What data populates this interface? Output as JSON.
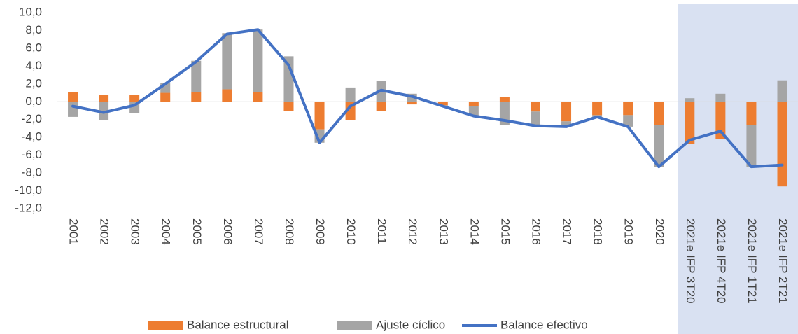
{
  "chart_data": {
    "type": "bar_line",
    "categories": [
      "2001",
      "2002",
      "2003",
      "2004",
      "2005",
      "2006",
      "2007",
      "2008",
      "2009",
      "2010",
      "2011",
      "2012",
      "2013",
      "2014",
      "2015",
      "2016",
      "2017",
      "2018",
      "2019",
      "2020",
      "2021e IFP 3T20",
      "2021e IFP 4T20",
      "2021e IFP 1T21",
      "2021e IFP 2T21"
    ],
    "series": [
      {
        "name": "Balance estructural",
        "type": "bar",
        "color": "#ed7d31",
        "values": [
          1.1,
          0.8,
          0.8,
          1.0,
          1.1,
          1.4,
          1.1,
          -1.0,
          -3.1,
          -2.1,
          -1.0,
          -0.3,
          -0.4,
          -0.5,
          0.5,
          -1.1,
          -2.2,
          -1.5,
          -1.5,
          -2.6,
          -4.7,
          -4.2,
          -2.6,
          -9.5
        ]
      },
      {
        "name": "Ajuste cíclico",
        "type": "bar",
        "color": "#a5a5a5",
        "values": [
          -1.7,
          -2.1,
          -1.3,
          1.1,
          3.5,
          6.3,
          7.0,
          5.1,
          -1.5,
          1.6,
          2.3,
          0.9,
          -0.1,
          -1.1,
          -2.6,
          -1.6,
          -0.6,
          -0.2,
          -1.3,
          -4.7,
          0.4,
          0.9,
          -4.7,
          2.4
        ]
      },
      {
        "name": "Balance efectivo",
        "type": "line",
        "color": "#4472c4",
        "values": [
          -0.5,
          -1.2,
          -0.4,
          2.0,
          4.5,
          7.6,
          8.1,
          4.1,
          -4.6,
          -0.5,
          1.3,
          0.6,
          -0.5,
          -1.6,
          -2.1,
          -2.7,
          -2.8,
          -1.7,
          -2.8,
          -7.3,
          -4.3,
          -3.3,
          -7.3,
          -7.1
        ]
      }
    ],
    "ylim": [
      -12,
      10
    ],
    "yticks": [
      {
        "value": 10,
        "label": "10,0"
      },
      {
        "value": 8,
        "label": "8,0"
      },
      {
        "value": 6,
        "label": "6,0"
      },
      {
        "value": 4,
        "label": "4,0"
      },
      {
        "value": 2,
        "label": "2,0"
      },
      {
        "value": 0,
        "label": "0,0"
      },
      {
        "value": -2,
        "label": "-2,0"
      },
      {
        "value": -4,
        "label": "-4,0"
      },
      {
        "value": -6,
        "label": "-6,0"
      },
      {
        "value": -8,
        "label": "-8,0"
      },
      {
        "value": -10,
        "label": "-10,0"
      },
      {
        "value": -12,
        "label": "-12,0"
      }
    ],
    "legend": "bottom"
  }
}
